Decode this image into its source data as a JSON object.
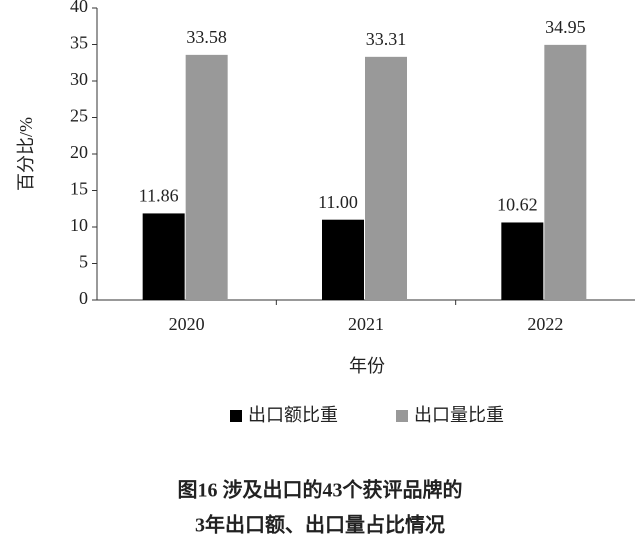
{
  "chart_data": {
    "type": "bar",
    "ylabel": "百分比/%",
    "xlabel": "年份",
    "categories": [
      "2020",
      "2021",
      "2022"
    ],
    "series": [
      {
        "name": "出口额比重",
        "color": "#000000",
        "values": [
          11.86,
          11.0,
          10.62
        ],
        "value_labels": [
          "11.86",
          "11.00",
          "10.62"
        ]
      },
      {
        "name": "出口量比重",
        "color": "#999999",
        "values": [
          33.58,
          33.31,
          34.95
        ],
        "value_labels": [
          "33.58",
          "33.31",
          "34.95"
        ]
      }
    ],
    "ylim": [
      0,
      40
    ],
    "yticks": [
      0,
      5,
      10,
      15,
      20,
      25,
      30,
      35,
      40
    ],
    "caption": [
      "图16  涉及出口的43个获评品牌的",
      "3年出口额、出口量占比情况"
    ]
  }
}
